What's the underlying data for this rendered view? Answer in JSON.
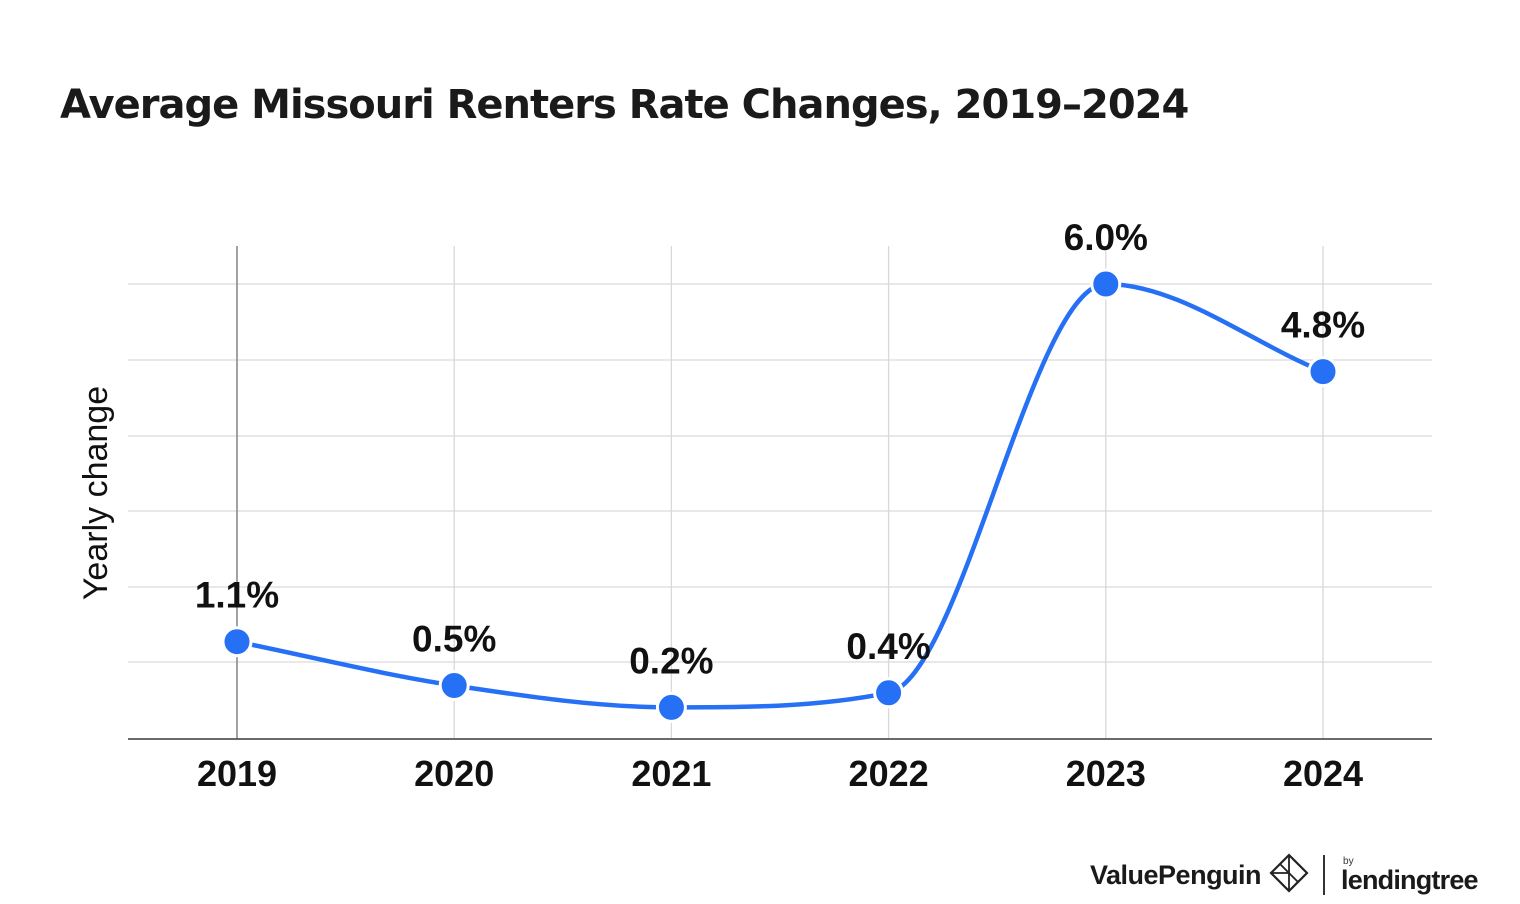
{
  "chart_data": {
    "type": "line",
    "title": "Average Missouri Renters Rate Changes, 2019–2024",
    "ylabel": "Yearly change",
    "xlabel": "",
    "categories": [
      "2019",
      "2020",
      "2021",
      "2022",
      "2023",
      "2024"
    ],
    "values": [
      1.1,
      0.5,
      0.2,
      0.4,
      6.0,
      4.8
    ],
    "data_labels": [
      "1.1%",
      "0.5%",
      "0.2%",
      "0.4%",
      "6.0%",
      "4.8%"
    ],
    "ylim": [
      0,
      6
    ],
    "smooth": true,
    "grid": true,
    "legend": "none",
    "line_color": "#2670f5",
    "grid_color": "#d9d9d9"
  },
  "branding": {
    "name": "ValuePenguin",
    "by": "by",
    "partner": "lendingtree",
    "icon": "valuepenguin-diamond-icon"
  }
}
